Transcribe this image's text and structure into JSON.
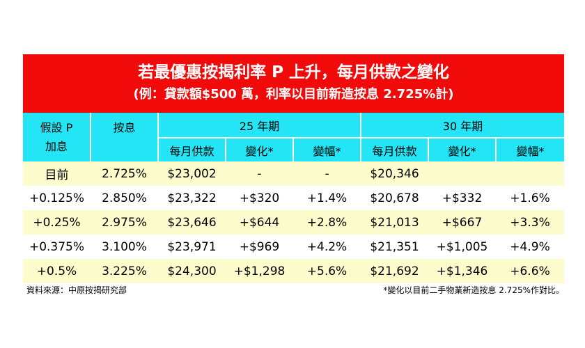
{
  "title": "若最優惠按揭利率 P 上升，每月供款之變化",
  "subtitle": "(例：貸款額$500 萬，利率以目前新造按息 2.725%計)",
  "header": {
    "col1_line1": "假設 P",
    "col1_line2": "加息",
    "col2": "按息",
    "group_25": "25 年期",
    "group_30": "30 年期",
    "sub": [
      "每月供款",
      "變化*",
      "變幅*",
      "每月供款",
      "變化*",
      "變幅*"
    ]
  },
  "rows": [
    [
      "目前",
      "2.725%",
      "$23,002",
      "-",
      "-",
      "$20,346",
      "",
      ""
    ],
    [
      "+0.125%",
      "2.850%",
      "$23,322",
      "+$320",
      "+1.4%",
      "$20,678",
      "+$332",
      "+1.6%"
    ],
    [
      "+0.25%",
      "2.975%",
      "$23,646",
      "+$644",
      "+2.8%",
      "$21,013",
      "+$667",
      "+3.3%"
    ],
    [
      "+0.375%",
      "3.100%",
      "$23,971",
      "+$969",
      "+4.2%",
      "$21,351",
      "+$1,005",
      "+4.9%"
    ],
    [
      "+0.5%",
      "3.225%",
      "$24,300",
      "+$1,298",
      "+5.6%",
      "$21,692",
      "+$1,346",
      "+6.6%"
    ]
  ],
  "source": "資料來源：中原按揭研究部",
  "note": "*變化以目前二手物業新造按息 2.725%作對比。",
  "colors": {
    "banner": "#f00a0a",
    "header": "#24e5f5",
    "row_highlight": "#fdfccc"
  }
}
